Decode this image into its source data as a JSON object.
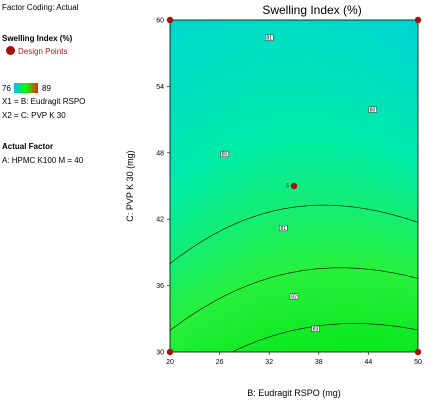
{
  "panel": {
    "factor_coding": "Factor Coding: Actual",
    "response_title": "Swelling Index (%)",
    "design_points_label": "Design Points",
    "colorbar_min": "76",
    "colorbar_max": "89",
    "x1_def": "X1 = B: Eudragit RSPO",
    "x2_def": "X2 = C: PVP K 30",
    "actual_factor_title": "Actual Factor",
    "actual_factor_value": "A: HPMC K100 M  = 40"
  },
  "colors": {
    "low": "#00bfff",
    "mid": "#00ff00",
    "high": "#ff2200",
    "design_point": "#a51010"
  },
  "chart_data": {
    "type": "contour",
    "title": "Swelling Index (%)",
    "xlabel": "B: Eudragit RSPO  (mg)",
    "ylabel": "C: PVP K 30  (mg)",
    "xlim": [
      20,
      50
    ],
    "ylim": [
      30,
      60
    ],
    "xticks": [
      "20",
      "26",
      "32",
      "38",
      "44",
      "50"
    ],
    "yticks": [
      "30",
      "36",
      "42",
      "48",
      "54",
      "60"
    ],
    "design_points": [
      {
        "x": 20,
        "y": 60
      },
      {
        "x": 50,
        "y": 60
      },
      {
        "x": 20,
        "y": 30
      },
      {
        "x": 50,
        "y": 30
      },
      {
        "x": 35,
        "y": 45
      }
    ],
    "center_point_label": "5",
    "contour_labels": [
      {
        "text": "81",
        "x": 32,
        "y": 58.4
      },
      {
        "text": "80",
        "x": 44.5,
        "y": 51.9
      },
      {
        "text": "80",
        "x": 26.6,
        "y": 47.9
      },
      {
        "text": "81",
        "x": 33.7,
        "y": 41.2
      },
      {
        "text": "82",
        "x": 35.0,
        "y": 35.0
      },
      {
        "text": "83",
        "x": 37.6,
        "y": 32.1
      }
    ]
  }
}
